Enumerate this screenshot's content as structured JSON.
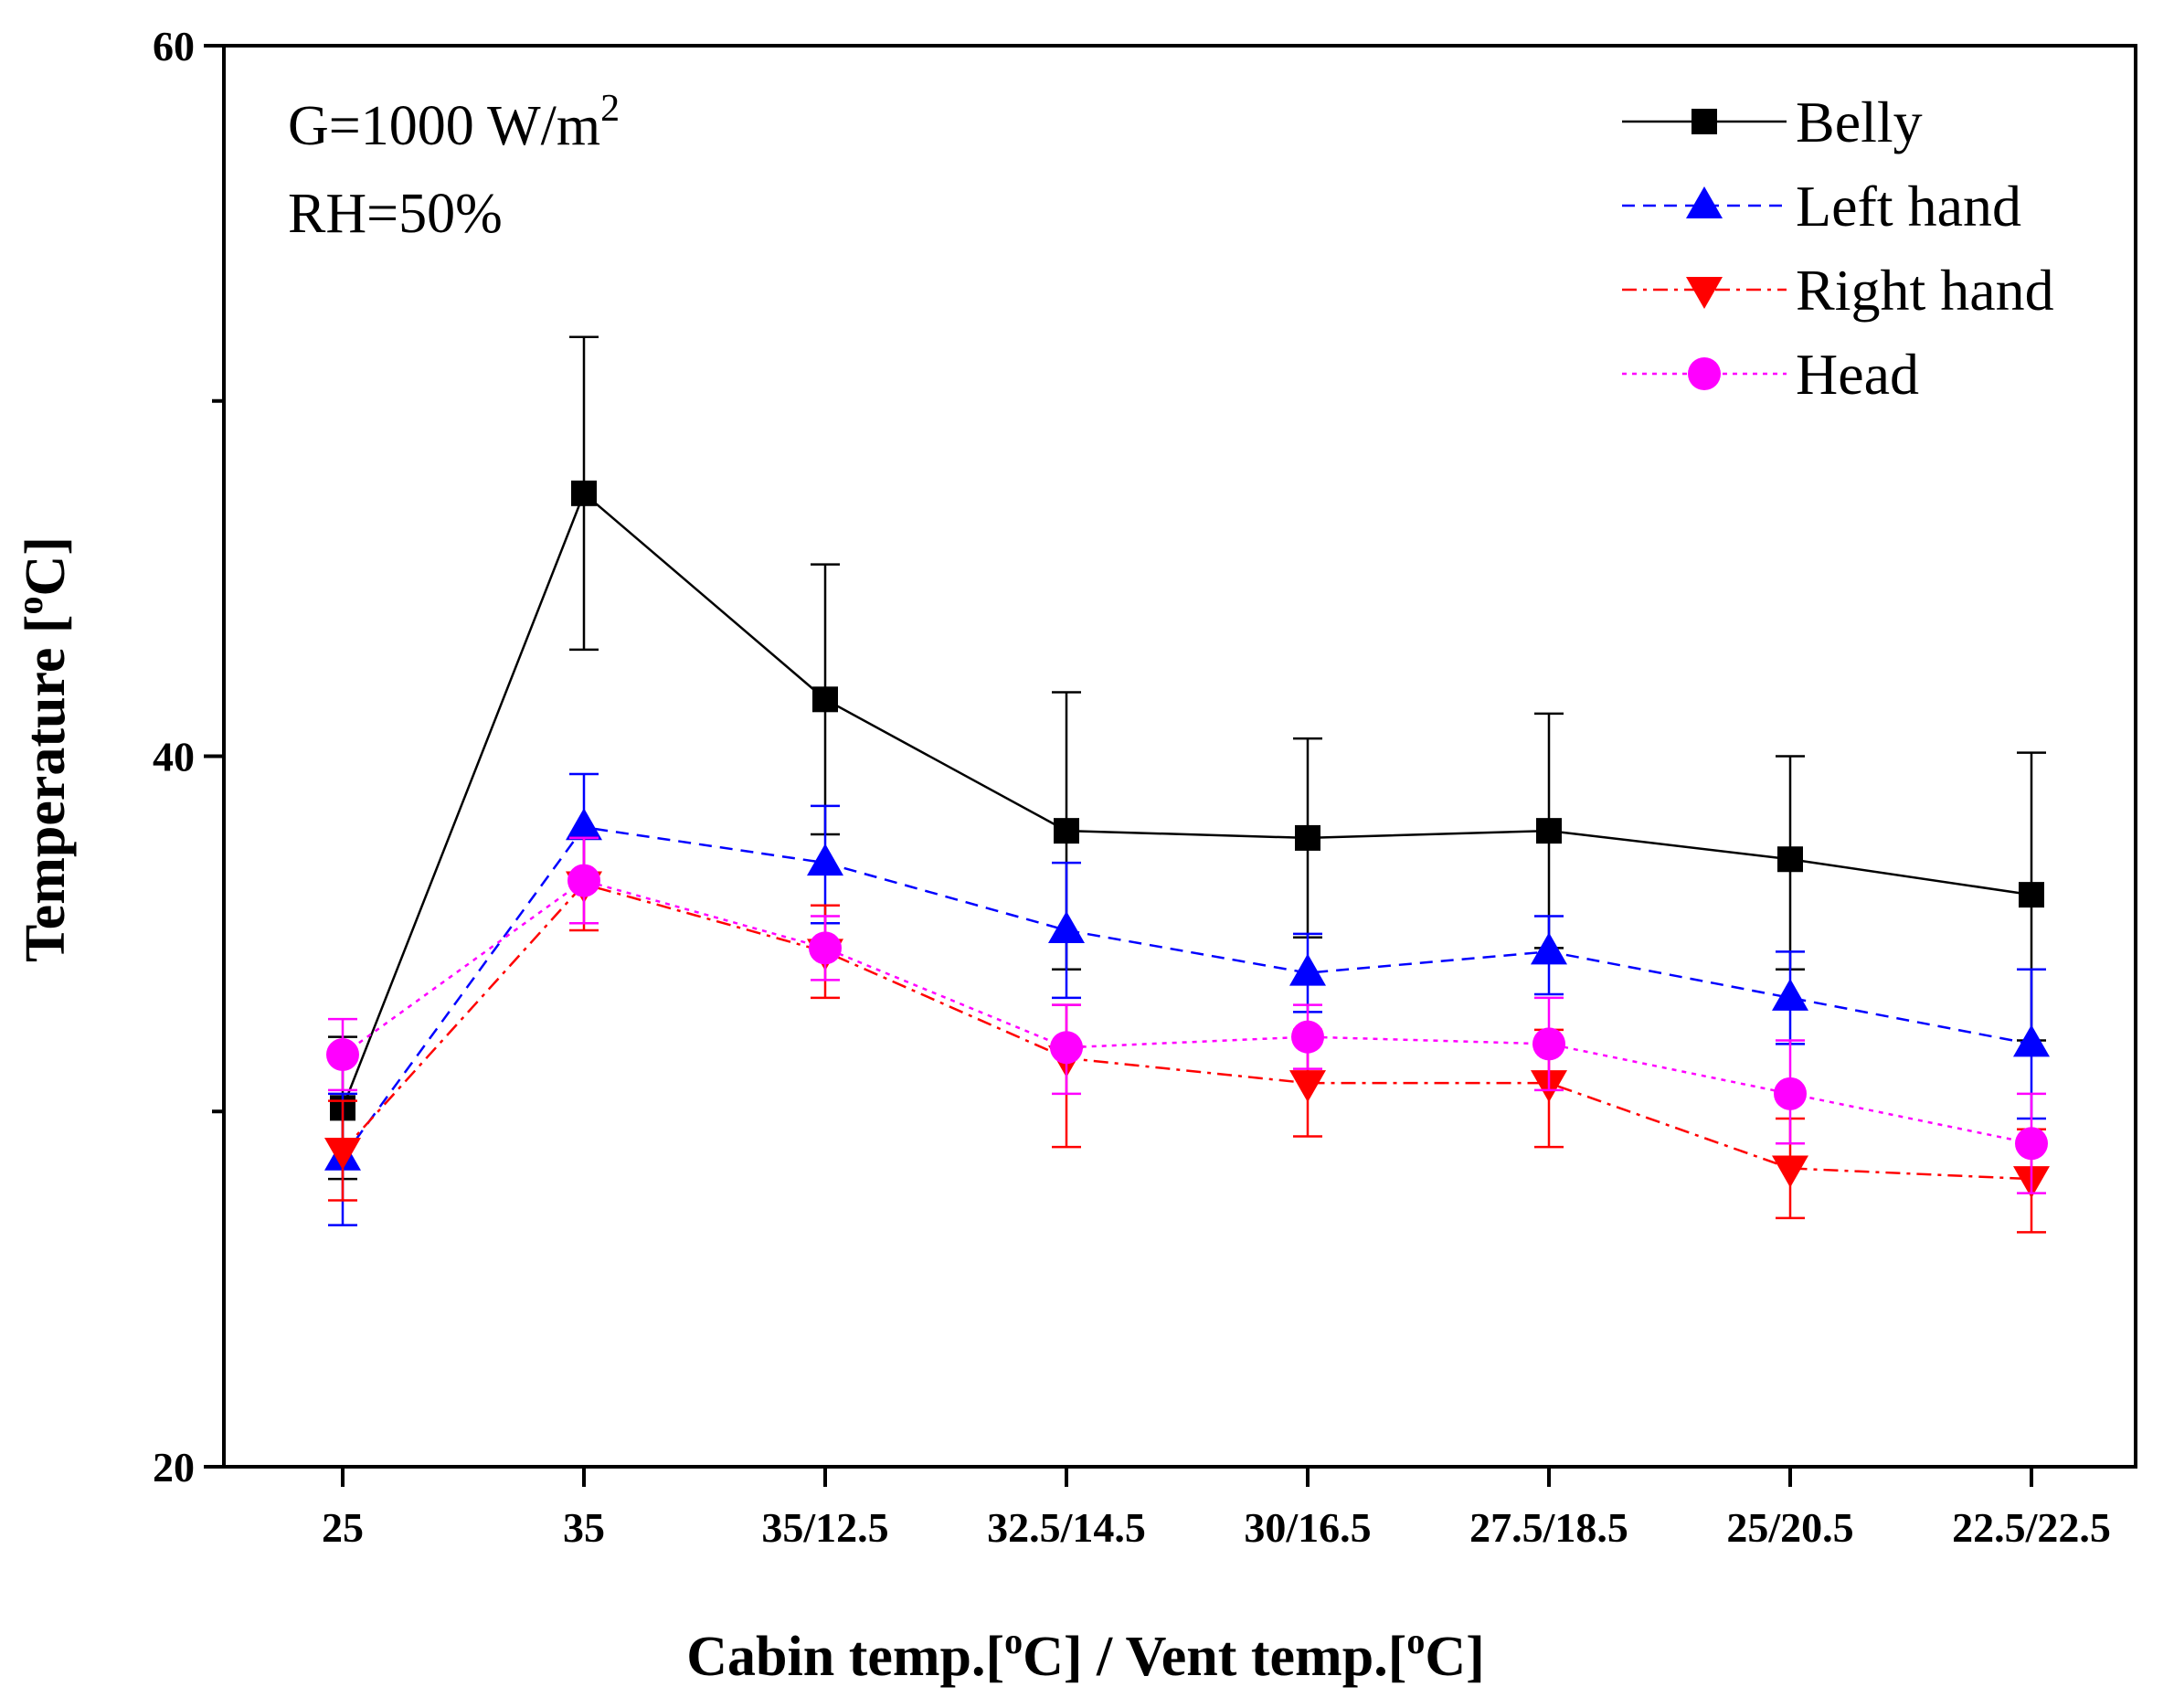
{
  "chart_data": {
    "type": "line",
    "title": "",
    "xlabel": "Cabin temp.[oC] / Vent temp.[oC]",
    "xlabel_parts": {
      "part1": "Cabin temp.[",
      "sup1": "o",
      "part2": "C] / Vent temp.[",
      "sup2": "o",
      "part3": "C]"
    },
    "ylabel": "Temperature [oC]",
    "ylabel_parts": {
      "part1": "Temperature [",
      "sup": "o",
      "part2": "C]"
    },
    "categories": [
      "25",
      "35",
      "35/12.5",
      "32.5/14.5",
      "30/16.5",
      "27.5/18.5",
      "25/20.5",
      "22.5/22.5"
    ],
    "ylim": [
      20,
      60
    ],
    "yticks": [
      20,
      40,
      60
    ],
    "yticks_labels": [
      "20",
      "40",
      "60"
    ],
    "ytick_minor": [
      30,
      50
    ],
    "grid": false,
    "legend_position": "top-right",
    "annotations": {
      "irradiance": {
        "prefix": "G=1000 W/m",
        "sup": "2"
      },
      "humidity": "RH=50%"
    },
    "series": [
      {
        "name": "Belly",
        "color": "#000000",
        "marker": "square",
        "dash": "solid",
        "values": [
          30.1,
          47.4,
          41.6,
          37.9,
          37.7,
          37.9,
          37.1,
          36.1
        ],
        "error_upper": [
          32.1,
          51.8,
          45.4,
          41.8,
          40.5,
          41.2,
          40.0,
          40.1
        ],
        "error_lower": [
          28.1,
          43.0,
          37.8,
          34.0,
          34.9,
          34.6,
          34.0,
          32.0
        ]
      },
      {
        "name": "Left hand",
        "color": "#0000ff",
        "marker": "triangle-up",
        "dash": "dashed",
        "values": [
          28.7,
          38.0,
          37.0,
          35.1,
          33.9,
          34.5,
          33.2,
          31.9
        ],
        "error_upper": [
          30.5,
          39.5,
          38.6,
          37.0,
          35.0,
          35.5,
          34.5,
          34.0
        ],
        "error_lower": [
          26.8,
          36.5,
          35.3,
          33.2,
          32.8,
          33.3,
          31.9,
          29.8
        ]
      },
      {
        "name": "Right hand",
        "color": "#ff0000",
        "marker": "triangle-down",
        "dash": "dashdot",
        "values": [
          28.9,
          36.4,
          34.5,
          31.5,
          30.8,
          30.8,
          28.4,
          28.1
        ],
        "error_upper": [
          30.3,
          37.7,
          35.8,
          33.0,
          32.3,
          32.3,
          29.8,
          29.5
        ],
        "error_lower": [
          27.5,
          35.1,
          33.2,
          29.0,
          29.3,
          29.0,
          27.0,
          26.6
        ]
      },
      {
        "name": "Head",
        "color": "#ff00ff",
        "marker": "circle",
        "dash": "dotted",
        "values": [
          31.6,
          36.5,
          34.6,
          31.8,
          32.1,
          31.9,
          30.5,
          29.1
        ],
        "error_upper": [
          32.6,
          37.7,
          35.5,
          33.0,
          33.0,
          33.2,
          32.0,
          30.5
        ],
        "error_lower": [
          30.6,
          35.3,
          33.7,
          30.5,
          31.2,
          30.6,
          29.1,
          27.7
        ]
      }
    ]
  }
}
